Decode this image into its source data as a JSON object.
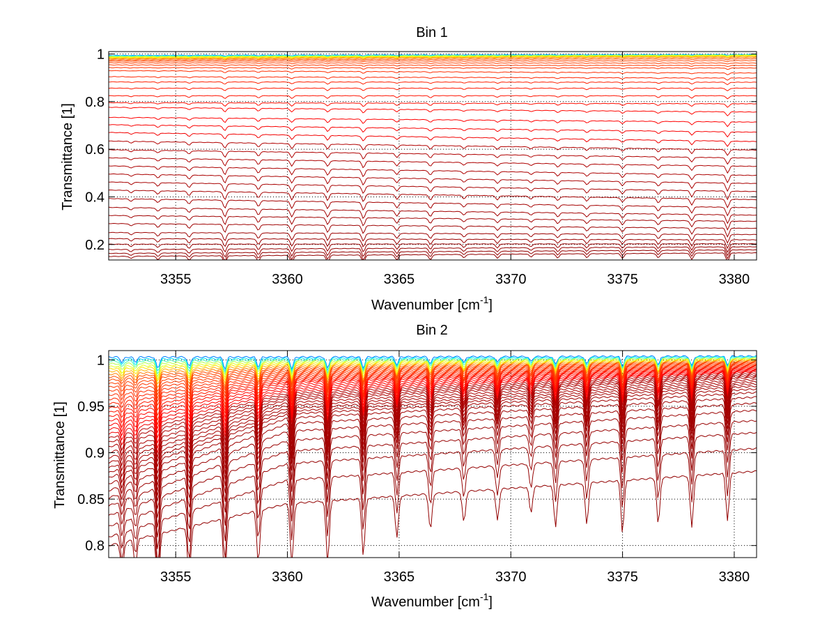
{
  "chart_data": [
    {
      "type": "line",
      "title": "Bin 1",
      "xlabel": "Wavenumber [cm",
      "xlabel_sup": "-1",
      "xlabel_end": "]",
      "ylabel": "Transmittance [1]",
      "xlim": [
        3352,
        3381
      ],
      "ylim": [
        0.135,
        1.01
      ],
      "x_ticks": [
        3355,
        3360,
        3365,
        3370,
        3375,
        3380
      ],
      "y_ticks": [
        0.2,
        0.4,
        0.6,
        0.8,
        1
      ],
      "grid": true,
      "grid_style": "dotted",
      "legend": "none",
      "colormap": "jet, blue at highest transmittance to dark red at lowest",
      "series_count": 40,
      "baseline_x": [
        3352,
        3381
      ],
      "baseline_transmittance": {
        "start": [
          0.994,
          0.992,
          0.99,
          0.988,
          0.985,
          0.982,
          0.978,
          0.973,
          0.967,
          0.958,
          0.945,
          0.93,
          0.9,
          0.875,
          0.84,
          0.8,
          0.78,
          0.73,
          0.695,
          0.655,
          0.61,
          0.57,
          0.53,
          0.49,
          0.45,
          0.41,
          0.365,
          0.325,
          0.285,
          0.24,
          0.215,
          0.185,
          0.165,
          0.15
        ],
        "end": [
          0.998,
          0.997,
          0.996,
          0.995,
          0.993,
          0.99,
          0.985,
          0.978,
          0.968,
          0.955,
          0.945,
          0.92,
          0.895,
          0.875,
          0.84,
          0.8,
          0.76,
          0.71,
          0.66,
          0.615,
          0.575,
          0.535,
          0.49,
          0.45,
          0.41,
          0.37,
          0.33,
          0.3,
          0.265,
          0.235,
          0.21,
          0.195,
          0.18,
          0.165
        ]
      },
      "absorption_lines_cm-1": [
        3353,
        3354.2,
        3355.6,
        3357.2,
        3358.7,
        3360.2,
        3361.8,
        3363.4,
        3364.9,
        3366.4,
        3367.9,
        3369.4,
        3370.9,
        3372.1,
        3373.4,
        3375.0,
        3376.6,
        3378.1,
        3379.7
      ],
      "absorption_line_depths": [
        0.008,
        0.012,
        0.015,
        0.028,
        0.02,
        0.025,
        0.025,
        0.028,
        0.018,
        0.018,
        0.012,
        0.014,
        0.01,
        0.014,
        0.014,
        0.016,
        0.016,
        0.022,
        0.03
      ]
    },
    {
      "type": "line",
      "title": "Bin 2",
      "xlabel": "Wavenumber [cm",
      "xlabel_sup": "-1",
      "xlabel_end": "]",
      "ylabel": "Transmittance [1]",
      "xlim": [
        3352,
        3381
      ],
      "ylim": [
        0.787,
        1.01
      ],
      "x_ticks": [
        3355,
        3360,
        3365,
        3370,
        3375,
        3380
      ],
      "y_ticks": [
        0.8,
        0.85,
        0.9,
        0.95,
        1
      ],
      "y_tick_labels": [
        "0.8",
        "0.85",
        "0.9",
        "0.95",
        "1"
      ],
      "grid": true,
      "grid_style": "dotted",
      "legend": "none",
      "colormap": "jet, blue at highest transmittance to dark red at lowest",
      "series_count": 40,
      "baseline_x": [
        3352,
        3360,
        3381
      ],
      "baseline_transmittance": {
        "start": [
          1.003,
          1.0,
          0.997,
          0.993,
          0.99,
          0.986,
          0.982,
          0.978,
          0.973,
          0.968,
          0.962,
          0.956,
          0.95,
          0.944,
          0.938,
          0.932,
          0.926,
          0.92,
          0.914,
          0.908,
          0.9,
          0.893,
          0.886,
          0.879,
          0.872,
          0.863,
          0.853,
          0.842,
          0.828,
          0.812,
          0.8
        ],
        "mid": [
          1.003,
          1.001,
          0.999,
          0.997,
          0.995,
          0.993,
          0.991,
          0.989,
          0.987,
          0.985,
          0.983,
          0.981,
          0.979,
          0.977,
          0.975,
          0.972,
          0.969,
          0.966,
          0.963,
          0.96,
          0.957,
          0.953,
          0.949,
          0.945,
          0.941,
          0.935,
          0.925,
          0.912,
          0.897,
          0.878,
          0.845
        ],
        "end": [
          1.004,
          1.003,
          1.002,
          1.001,
          1.0,
          0.999,
          0.998,
          0.997,
          0.996,
          0.995,
          0.994,
          0.993,
          0.992,
          0.991,
          0.99,
          0.989,
          0.988,
          0.987,
          0.985,
          0.983,
          0.981,
          0.978,
          0.975,
          0.972,
          0.968,
          0.963,
          0.955,
          0.945,
          0.93,
          0.912,
          0.88
        ]
      },
      "absorption_lines_cm-1": [
        3352.6,
        3353.2,
        3354.2,
        3355.6,
        3357.2,
        3358.7,
        3360.2,
        3361.8,
        3363.4,
        3364.9,
        3366.4,
        3367.9,
        3369.4,
        3370.9,
        3372.0,
        3373.4,
        3375.0,
        3376.6,
        3378.1,
        3379.7
      ],
      "absorption_line_depths": [
        0.028,
        0.025,
        0.06,
        0.05,
        0.06,
        0.05,
        0.06,
        0.06,
        0.055,
        0.04,
        0.035,
        0.03,
        0.03,
        0.025,
        0.04,
        0.04,
        0.05,
        0.045,
        0.05,
        0.045
      ]
    }
  ]
}
